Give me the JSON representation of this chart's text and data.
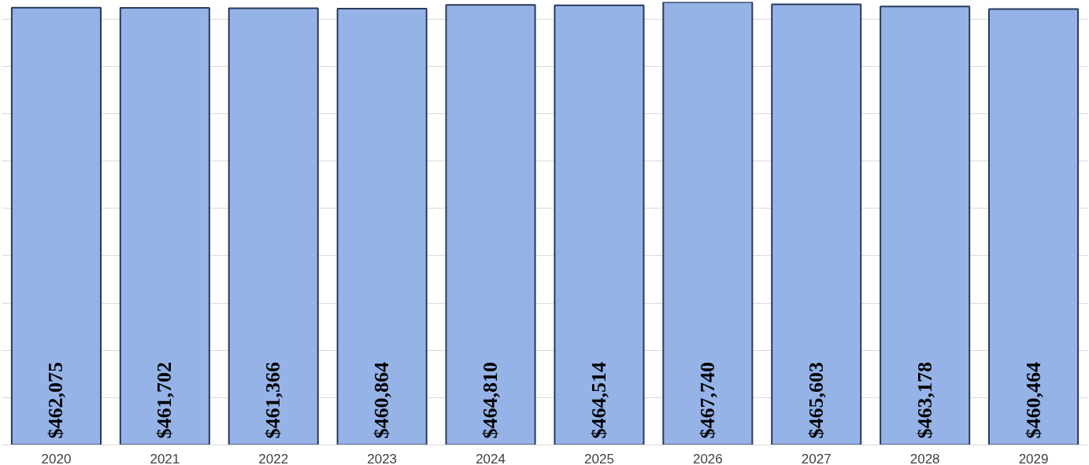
{
  "chart_data": {
    "type": "bar",
    "categories": [
      "2020",
      "2021",
      "2022",
      "2023",
      "2024",
      "2025",
      "2026",
      "2027",
      "2028",
      "2029"
    ],
    "values": [
      462075,
      461702,
      461366,
      460864,
      464810,
      464514,
      467740,
      465603,
      463178,
      460464
    ],
    "value_labels": [
      "$462,075",
      "$461,702",
      "$461,366",
      "$460,864",
      "$464,810",
      "$464,514",
      "$467,740",
      "$465,603",
      "$463,178",
      "$460,464"
    ],
    "color": "#95b3e7",
    "ylim": [
      0,
      468000
    ],
    "yticks": [
      {
        "value": 0,
        "label": null
      },
      {
        "value": 50000,
        "label": null
      },
      {
        "value": 100000,
        "label": null
      },
      {
        "value": 150000,
        "label": null
      },
      {
        "value": 200000,
        "label": null
      },
      {
        "value": 250000,
        "label": null
      },
      {
        "value": 300000,
        "label": null
      },
      {
        "value": 350000,
        "label": null
      },
      {
        "value": 400000,
        "label": null
      },
      {
        "value": 450000,
        "label": null
      }
    ],
    "tick_labels": "x",
    "grid": "y"
  }
}
